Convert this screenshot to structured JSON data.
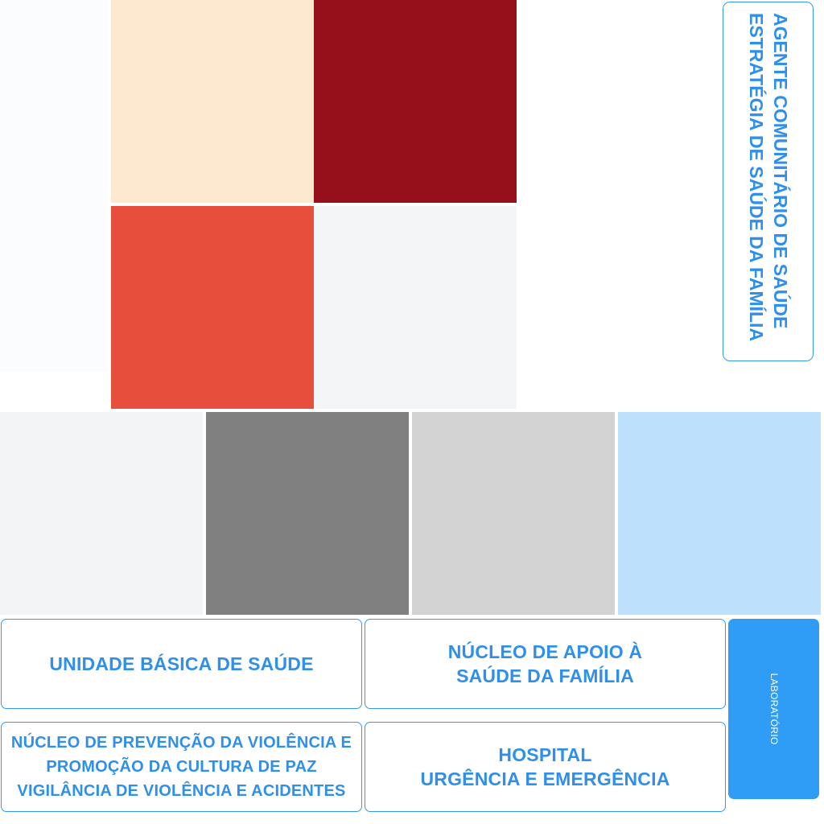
{
  "colors": {
    "swatch_peach": "#fde8d0",
    "swatch_dark_red": "#95101b",
    "swatch_red": "#e84e3c",
    "swatch_light_gray": "#f4f5f7",
    "swatch_lightest_blue": "#fbfcfe",
    "swatch_pale_gray": "#f3f4f6",
    "swatch_gray": "#808080",
    "swatch_silver": "#d3d3d3",
    "swatch_light_blue": "#bde0fd",
    "accent_blue": "#2f8fe9",
    "lab_blue": "#2f9cf5"
  },
  "vertical_card": {
    "text": "AGENTE COMUNITÁRIO DE SAÚDE\nESTRATÉGIA DE SAÚDE DA FAMÍLIA"
  },
  "cards": {
    "ubs": "UNIDADE BÁSICA DE SAÚDE",
    "nasf": "NÚCLEO DE APOIO À\nSAÚDE DA FAMÍLIA",
    "nucleo_prevencao": "NÚCLEO DE PREVENÇÃO DA VIOLÊNCIA E\nPROMOÇÃO DA CULTURA DE PAZ\nVIGILÂNCIA DE VIOLÊNCIA E ACIDENTES",
    "hospital": "HOSPITAL\nURGÊNCIA E EMERGÊNCIA",
    "laboratorio": "LABORATÓRIO"
  }
}
